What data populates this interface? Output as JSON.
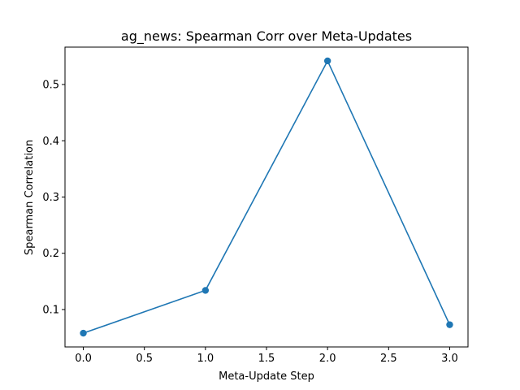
{
  "chart_data": {
    "type": "line",
    "title": "ag_news: Spearman Corr over Meta-Updates",
    "xlabel": "Meta-Update Step",
    "ylabel": "Spearman Correlation",
    "xlim": [
      -0.15,
      3.15
    ],
    "ylim": [
      0.0335,
      0.5665
    ],
    "xticks": [
      0.0,
      0.5,
      1.0,
      1.5,
      2.0,
      2.5,
      3.0
    ],
    "xtick_labels": [
      "0.0",
      "0.5",
      "1.0",
      "1.5",
      "2.0",
      "2.5",
      "3.0"
    ],
    "yticks": [
      0.1,
      0.2,
      0.3,
      0.4,
      0.5
    ],
    "ytick_labels": [
      "0.1",
      "0.2",
      "0.3",
      "0.4",
      "0.5"
    ],
    "grid": false,
    "series": [
      {
        "x": [
          0,
          1,
          2,
          3
        ],
        "y": [
          0.058,
          0.134,
          0.542,
          0.073
        ],
        "color": "#1f77b4",
        "marker": "circle"
      }
    ]
  }
}
